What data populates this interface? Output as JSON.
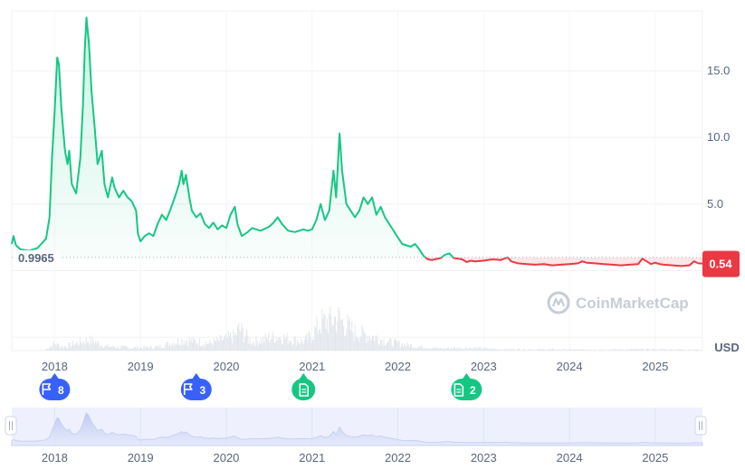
{
  "chart_data": {
    "type": "area",
    "title": "",
    "xlabel": "",
    "ylabel": "",
    "currency_label": "USD",
    "watermark": "CoinMarketCap",
    "reference_price": "0.9965",
    "reference_value": 0.9965,
    "current_price_label": "0.54",
    "current_value": 0.54,
    "ylim": [
      -6.0,
      19.5
    ],
    "y_ticks": [
      {
        "value": 5.0,
        "label": "5.0"
      },
      {
        "value": 10.0,
        "label": "10.0"
      },
      {
        "value": 15.0,
        "label": "15.0"
      }
    ],
    "xlim": [
      2017.5,
      2025.55
    ],
    "x_ticks": [
      "2018",
      "2019",
      "2020",
      "2021",
      "2022",
      "2023",
      "2024",
      "2025"
    ],
    "navigator_x_ticks": [
      "2018",
      "2019",
      "2020",
      "2021",
      "2022",
      "2023",
      "2024",
      "2025"
    ],
    "colors": {
      "above": "#16c784",
      "below": "#ea3943",
      "grid": "#eff2f5",
      "axis_text": "#58667e",
      "flag_event": "#3861fb",
      "news_event": "#16c784",
      "navigator_bg": "#eef1fd"
    },
    "series": [
      {
        "points": [
          [
            2017.5,
            2.0
          ],
          [
            2017.52,
            2.6
          ],
          [
            2017.55,
            1.9
          ],
          [
            2017.6,
            1.6
          ],
          [
            2017.7,
            1.5
          ],
          [
            2017.8,
            1.7
          ],
          [
            2017.9,
            2.4
          ],
          [
            2017.94,
            4.0
          ],
          [
            2017.97,
            8.5
          ],
          [
            2018.0,
            12.0
          ],
          [
            2018.03,
            16.0
          ],
          [
            2018.05,
            15.5
          ],
          [
            2018.08,
            12.0
          ],
          [
            2018.12,
            9.0
          ],
          [
            2018.15,
            8.0
          ],
          [
            2018.17,
            9.0
          ],
          [
            2018.2,
            6.5
          ],
          [
            2018.25,
            5.8
          ],
          [
            2018.3,
            8.5
          ],
          [
            2018.33,
            12.5
          ],
          [
            2018.35,
            16.5
          ],
          [
            2018.37,
            19.0
          ],
          [
            2018.4,
            17.0
          ],
          [
            2018.43,
            13.5
          ],
          [
            2018.47,
            10.5
          ],
          [
            2018.5,
            8.0
          ],
          [
            2018.55,
            9.0
          ],
          [
            2018.58,
            6.5
          ],
          [
            2018.62,
            5.5
          ],
          [
            2018.67,
            7.0
          ],
          [
            2018.7,
            6.2
          ],
          [
            2018.75,
            5.5
          ],
          [
            2018.8,
            6.0
          ],
          [
            2018.85,
            5.5
          ],
          [
            2018.9,
            5.2
          ],
          [
            2018.95,
            4.5
          ],
          [
            2018.97,
            2.8
          ],
          [
            2019.0,
            2.2
          ],
          [
            2019.05,
            2.6
          ],
          [
            2019.1,
            2.8
          ],
          [
            2019.15,
            2.6
          ],
          [
            2019.2,
            3.5
          ],
          [
            2019.25,
            4.2
          ],
          [
            2019.3,
            3.8
          ],
          [
            2019.35,
            4.6
          ],
          [
            2019.4,
            5.5
          ],
          [
            2019.45,
            6.5
          ],
          [
            2019.48,
            7.5
          ],
          [
            2019.5,
            6.5
          ],
          [
            2019.53,
            7.2
          ],
          [
            2019.57,
            5.5
          ],
          [
            2019.6,
            4.5
          ],
          [
            2019.65,
            4.0
          ],
          [
            2019.7,
            4.3
          ],
          [
            2019.75,
            3.5
          ],
          [
            2019.8,
            3.2
          ],
          [
            2019.85,
            3.6
          ],
          [
            2019.9,
            3.1
          ],
          [
            2019.95,
            3.4
          ],
          [
            2020.0,
            3.2
          ],
          [
            2020.05,
            4.2
          ],
          [
            2020.1,
            4.8
          ],
          [
            2020.13,
            3.5
          ],
          [
            2020.18,
            2.6
          ],
          [
            2020.25,
            2.9
          ],
          [
            2020.3,
            3.2
          ],
          [
            2020.4,
            3.0
          ],
          [
            2020.5,
            3.3
          ],
          [
            2020.55,
            3.6
          ],
          [
            2020.6,
            4.0
          ],
          [
            2020.65,
            3.5
          ],
          [
            2020.72,
            3.0
          ],
          [
            2020.8,
            2.9
          ],
          [
            2020.9,
            3.1
          ],
          [
            2020.95,
            3.0
          ],
          [
            2021.0,
            3.1
          ],
          [
            2021.05,
            3.8
          ],
          [
            2021.1,
            5.0
          ],
          [
            2021.15,
            3.8
          ],
          [
            2021.2,
            4.5
          ],
          [
            2021.25,
            7.5
          ],
          [
            2021.28,
            5.5
          ],
          [
            2021.32,
            10.3
          ],
          [
            2021.35,
            7.5
          ],
          [
            2021.4,
            5.0
          ],
          [
            2021.45,
            4.5
          ],
          [
            2021.5,
            4.0
          ],
          [
            2021.55,
            4.5
          ],
          [
            2021.6,
            5.5
          ],
          [
            2021.65,
            5.0
          ],
          [
            2021.7,
            5.5
          ],
          [
            2021.75,
            4.2
          ],
          [
            2021.8,
            4.8
          ],
          [
            2021.85,
            4.0
          ],
          [
            2021.9,
            3.5
          ],
          [
            2021.95,
            3.0
          ],
          [
            2022.0,
            2.5
          ],
          [
            2022.05,
            2.0
          ],
          [
            2022.15,
            1.8
          ],
          [
            2022.2,
            2.0
          ],
          [
            2022.25,
            1.6
          ],
          [
            2022.3,
            1.1
          ],
          [
            2022.35,
            0.85
          ],
          [
            2022.4,
            0.8
          ],
          [
            2022.5,
            0.95
          ],
          [
            2022.55,
            1.2
          ],
          [
            2022.6,
            1.3
          ],
          [
            2022.65,
            0.95
          ],
          [
            2022.75,
            0.85
          ],
          [
            2022.8,
            0.65
          ],
          [
            2022.85,
            0.75
          ],
          [
            2022.9,
            0.7
          ],
          [
            2023.0,
            0.75
          ],
          [
            2023.1,
            0.85
          ],
          [
            2023.2,
            0.8
          ],
          [
            2023.28,
            1.0
          ],
          [
            2023.32,
            0.7
          ],
          [
            2023.4,
            0.55
          ],
          [
            2023.5,
            0.5
          ],
          [
            2023.6,
            0.45
          ],
          [
            2023.7,
            0.5
          ],
          [
            2023.8,
            0.4
          ],
          [
            2023.9,
            0.45
          ],
          [
            2024.0,
            0.5
          ],
          [
            2024.1,
            0.55
          ],
          [
            2024.15,
            0.7
          ],
          [
            2024.2,
            0.6
          ],
          [
            2024.3,
            0.55
          ],
          [
            2024.4,
            0.5
          ],
          [
            2024.5,
            0.45
          ],
          [
            2024.6,
            0.4
          ],
          [
            2024.7,
            0.45
          ],
          [
            2024.8,
            0.5
          ],
          [
            2024.85,
            0.9
          ],
          [
            2024.9,
            0.7
          ],
          [
            2024.95,
            0.5
          ],
          [
            2025.0,
            0.6
          ],
          [
            2025.05,
            0.5
          ],
          [
            2025.1,
            0.45
          ],
          [
            2025.2,
            0.4
          ],
          [
            2025.3,
            0.35
          ],
          [
            2025.4,
            0.4
          ],
          [
            2025.45,
            0.7
          ],
          [
            2025.5,
            0.55
          ],
          [
            2025.55,
            0.54
          ]
        ]
      }
    ],
    "volume_profile": [
      [
        2017.9,
        0.2
      ],
      [
        2018.0,
        1.0
      ],
      [
        2018.1,
        0.5
      ],
      [
        2018.3,
        1.2
      ],
      [
        2018.4,
        1.5
      ],
      [
        2018.6,
        0.6
      ],
      [
        2018.9,
        0.4
      ],
      [
        2019.2,
        0.5
      ],
      [
        2019.5,
        1.5
      ],
      [
        2019.8,
        1.0
      ],
      [
        2020.1,
        2.0
      ],
      [
        2020.15,
        3.0
      ],
      [
        2020.3,
        1.2
      ],
      [
        2020.6,
        2.0
      ],
      [
        2020.9,
        1.2
      ],
      [
        2021.0,
        2.2
      ],
      [
        2021.1,
        3.8
      ],
      [
        2021.3,
        4.5
      ],
      [
        2021.5,
        2.5
      ],
      [
        2021.7,
        2.0
      ],
      [
        2021.9,
        1.2
      ],
      [
        2022.2,
        0.6
      ],
      [
        2022.5,
        0.3
      ],
      [
        2022.8,
        0.4
      ],
      [
        2023.2,
        0.2
      ],
      [
        2024.2,
        0.15
      ],
      [
        2025.0,
        0.2
      ],
      [
        2025.5,
        0.15
      ]
    ],
    "events": [
      {
        "kind": "flag",
        "count": "8",
        "x": 2018.0
      },
      {
        "kind": "flag",
        "count": "3",
        "x": 2019.65
      },
      {
        "kind": "news",
        "count": "",
        "x": 2020.9
      },
      {
        "kind": "news",
        "count": "2",
        "x": 2022.8
      }
    ]
  }
}
